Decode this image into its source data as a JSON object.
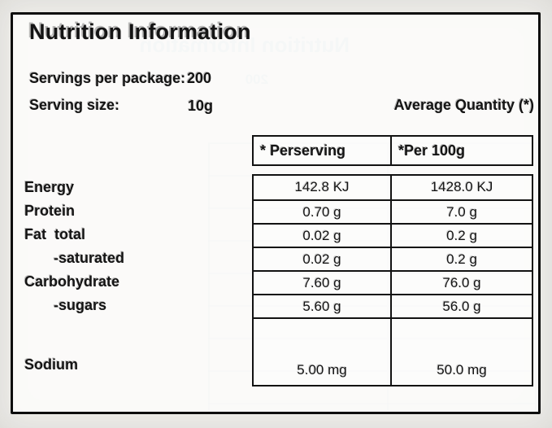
{
  "label": {
    "title": "Nutrition Information",
    "servings_label": "Servings per package:",
    "servings_value": "200",
    "serving_size_label": "Serving size:",
    "serving_size_value": "10g",
    "avg_quantity_label": "Average Quantity (*)",
    "table": {
      "col1_header": "* Perserving",
      "col2_header": "*Per 100g",
      "rows": [
        {
          "name": "Energy",
          "per_serving": "142.8 KJ",
          "per_100g": "1428.0 KJ"
        },
        {
          "name": "Protein",
          "per_serving": "0.70 g",
          "per_100g": "7.0 g"
        },
        {
          "name": "Fat  total",
          "per_serving": "0.02 g",
          "per_100g": "0.2 g"
        },
        {
          "name": "-saturated",
          "per_serving": "0.02 g",
          "per_100g": "0.2 g"
        },
        {
          "name": "Carbohydrate",
          "per_serving": "7.60 g",
          "per_100g": "76.0 g"
        },
        {
          "name": "-sugars",
          "per_serving": "5.60 g",
          "per_100g": "56.0 g"
        },
        {
          "name": "Sodium",
          "per_serving": "5.00 mg",
          "per_100g": "50.0 mg"
        }
      ]
    },
    "colors": {
      "ink": "#141414",
      "border": "#0d0d0d",
      "ghost_blue": "#4a74aa",
      "paper": "#f0efeb"
    }
  }
}
